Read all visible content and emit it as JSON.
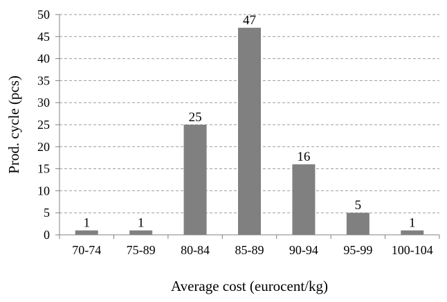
{
  "chart_data": {
    "type": "bar",
    "title": "",
    "xlabel": "Average cost (eurocent/kg)",
    "ylabel": "Prod. cycle (pcs)",
    "categories": [
      "70-74",
      "75-89",
      "80-84",
      "85-89",
      "90-94",
      "95-99",
      "100-104"
    ],
    "values": [
      1,
      1,
      25,
      47,
      16,
      5,
      1
    ],
    "data_labels": [
      "1",
      "1",
      "25",
      "47",
      "16",
      "5",
      "1"
    ],
    "ylim": [
      0,
      50
    ],
    "yticks": [
      0,
      5,
      10,
      15,
      20,
      25,
      30,
      35,
      40,
      45,
      50
    ],
    "grid": true,
    "legend": "none",
    "bar_color": "#808080"
  }
}
